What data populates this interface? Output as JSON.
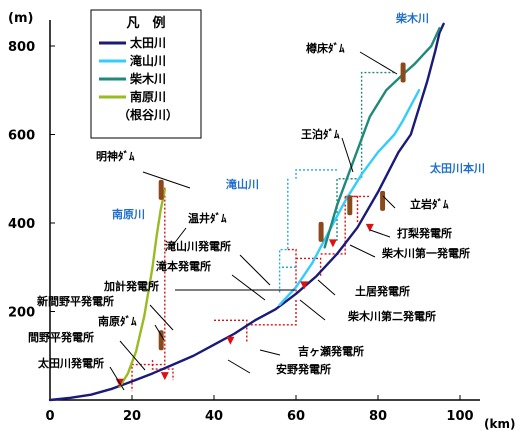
{
  "chart_data": {
    "type": "line",
    "ylabel": "(m)",
    "xlabel": "(km)",
    "xlim": [
      0,
      100
    ],
    "ylim": [
      0,
      850
    ],
    "xticks": [
      0,
      20,
      40,
      60,
      80,
      100
    ],
    "yticks": [
      200,
      400,
      600,
      800
    ],
    "grid": false,
    "legend": {
      "title": "凡　例",
      "position": "top-left",
      "entries": [
        {
          "label": "太田川",
          "color": "#1a1a7a"
        },
        {
          "label": "滝山川",
          "color": "#33ccff"
        },
        {
          "label": "柴木川",
          "color": "#1f8a7a"
        },
        {
          "label": "南原川",
          "color": "#99bb22"
        },
        {
          "label": "（根谷川）",
          "color": ""
        }
      ]
    },
    "series": [
      {
        "name": "太田川",
        "color": "#1a1a7a",
        "x": [
          0,
          5,
          10,
          15,
          20,
          25,
          30,
          35,
          40,
          45,
          50,
          55,
          60,
          65,
          70,
          75,
          80,
          85,
          88,
          90,
          92,
          94,
          95,
          96
        ],
        "y": [
          0,
          5,
          12,
          25,
          42,
          60,
          80,
          100,
          125,
          150,
          180,
          205,
          240,
          280,
          330,
          390,
          470,
          560,
          600,
          660,
          720,
          790,
          830,
          850
        ]
      },
      {
        "name": "滝山川",
        "color": "#33ccff",
        "x": [
          56,
          60,
          64,
          68,
          72,
          76,
          80,
          84,
          86,
          88,
          90
        ],
        "y": [
          215,
          255,
          310,
          380,
          450,
          510,
          560,
          600,
          630,
          665,
          700
        ]
      },
      {
        "name": "柴木川",
        "color": "#1f8a7a",
        "x": [
          67,
          70,
          74,
          78,
          82,
          86,
          89,
          91,
          93,
          95
        ],
        "y": [
          345,
          440,
          540,
          640,
          700,
          735,
          760,
          780,
          800,
          840
        ]
      },
      {
        "name": "南原川",
        "color": "#99bb22",
        "x": [
          17,
          19,
          21,
          23,
          25,
          26,
          27,
          28
        ],
        "y": [
          30,
          60,
          110,
          190,
          300,
          370,
          430,
          475
        ]
      }
    ],
    "annotations": [
      {
        "text": "明神ﾀﾞﾑ",
        "color": "#000000"
      },
      {
        "text": "南原川",
        "color": "#1f6fd0"
      },
      {
        "text": "温井ﾀﾞﾑ",
        "color": "#000000"
      },
      {
        "text": "滝山川発電所",
        "color": "#000000"
      },
      {
        "text": "滝本発電所",
        "color": "#000000"
      },
      {
        "text": "加計発電所",
        "color": "#000000"
      },
      {
        "text": "新間野平発電所",
        "color": "#000000"
      },
      {
        "text": "南原ﾀﾞﾑ",
        "color": "#000000"
      },
      {
        "text": "間野平発電所",
        "color": "#000000"
      },
      {
        "text": "太田川発電所",
        "color": "#000000"
      },
      {
        "text": "柴木川",
        "color": "#1f6fd0"
      },
      {
        "text": "樽床ﾀﾞﾑ",
        "color": "#000000"
      },
      {
        "text": "王泊ﾀﾞﾑ",
        "color": "#000000"
      },
      {
        "text": "滝山川",
        "color": "#1f6fd0"
      },
      {
        "text": "太田川本川",
        "color": "#1f6fd0"
      },
      {
        "text": "立岩ﾀﾞﾑ",
        "color": "#000000"
      },
      {
        "text": "打梨発電所",
        "color": "#000000"
      },
      {
        "text": "柴木川第一発電所",
        "color": "#000000"
      },
      {
        "text": "土居発電所",
        "color": "#000000"
      },
      {
        "text": "柴木川第二発電所",
        "color": "#000000"
      },
      {
        "text": "吉ヶ瀬発電所",
        "color": "#000000"
      },
      {
        "text": "安野発電所",
        "color": "#000000"
      }
    ]
  }
}
